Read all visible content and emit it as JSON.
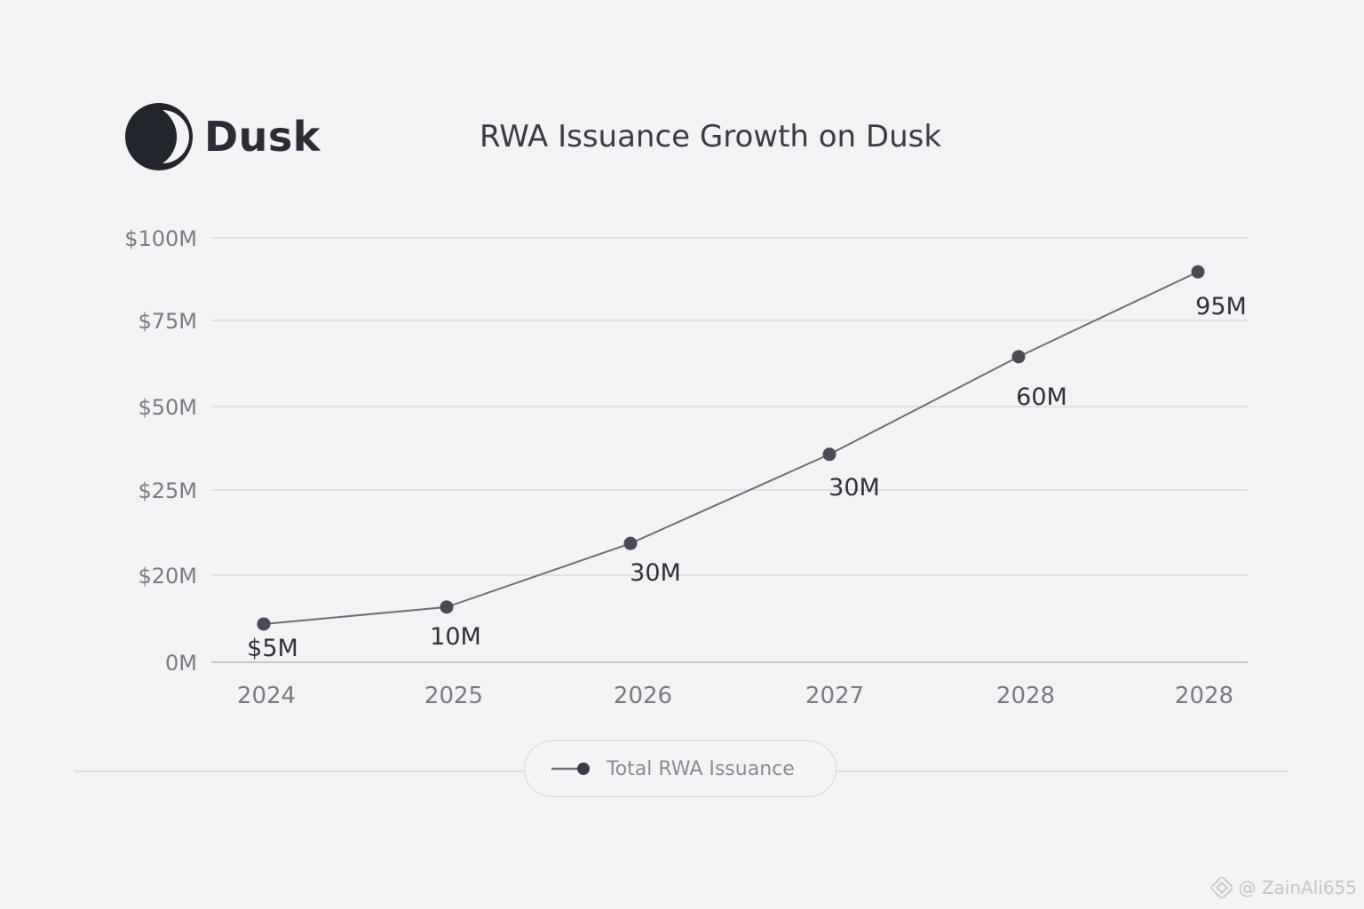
{
  "brand": {
    "name": "Dusk",
    "logo_icon": "dusk-crescent-icon"
  },
  "watermark": {
    "text": "@ ZainAli655",
    "icon": "binance-diamond-icon"
  },
  "colors": {
    "background": "#f3f2f4",
    "line": "#6e6f76",
    "point": "#4a4c55",
    "grid": "#cfced3",
    "axis_text": "#7a7b82",
    "label_text": "#2f3138"
  },
  "chart_data": {
    "type": "line",
    "title": "RWA Issuance Growth on Dusk",
    "xlabel": "",
    "ylabel": "",
    "categories": [
      "2024",
      "2025",
      "2026",
      "2027",
      "2028",
      "2028"
    ],
    "y_ticks": [
      "0M",
      "$20M",
      "$25M",
      "$50M",
      "$75M",
      "$100M"
    ],
    "series": [
      {
        "name": "Total RWA Issuance",
        "values": [
          5,
          10,
          30,
          30,
          60,
          95
        ],
        "plot_positions": [
          9,
          13,
          28,
          49,
          72,
          92
        ],
        "data_labels": [
          "$5M",
          "10M",
          "30M",
          "30M",
          "60M",
          "95M"
        ]
      }
    ],
    "legend": "bottom-center",
    "grid": true
  }
}
